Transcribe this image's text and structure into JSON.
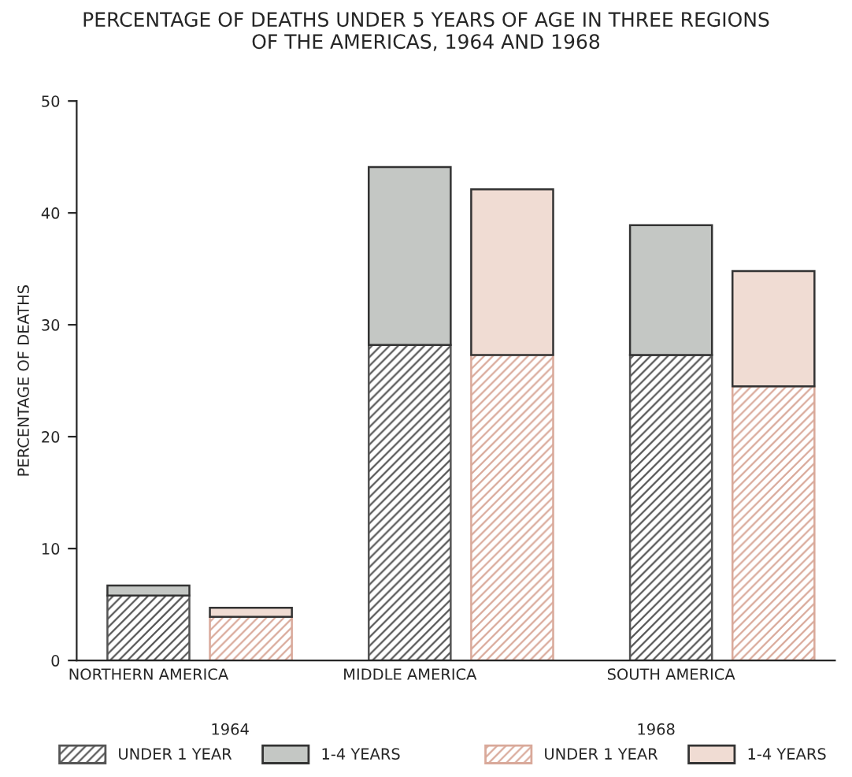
{
  "chart_data": {
    "type": "bar",
    "title": "PERCENTAGE OF DEATHS UNDER 5 YEARS OF AGE IN THREE REGIONS\nOF THE AMERICAS, 1964 AND 1968",
    "ylabel": "PERCENTAGE OF DEATHS",
    "categories": [
      "NORTHERN AMERICA",
      null,
      "MIDDLE AMERICA",
      null,
      "SOUTH AMERICA",
      null
    ],
    "stacked": true,
    "series": [
      {
        "name": "UNDER 1 YEAR",
        "colors": [
          "#555555",
          "#d9a99a",
          "#555555",
          "#d9a99a",
          "#555555",
          "#d9a99a"
        ],
        "values": [
          5.8,
          3.9,
          28.2,
          27.3,
          27.3,
          24.5
        ]
      },
      {
        "name": "1-4 YEARS",
        "colors": [
          "#c4c7c4",
          "#f0dcd3",
          "#c4c7c4",
          "#f0dcd3",
          "#c4c7c4",
          "#f0dcd3"
        ],
        "values": [
          0.9,
          0.8,
          15.9,
          14.8,
          11.6,
          10.3
        ]
      }
    ],
    "annotations": [
      "1964",
      "1968"
    ],
    "ylim": [
      0,
      50
    ],
    "yticks": [
      0,
      10,
      20,
      30,
      40,
      50
    ],
    "grid": false,
    "legend": "bottom"
  }
}
